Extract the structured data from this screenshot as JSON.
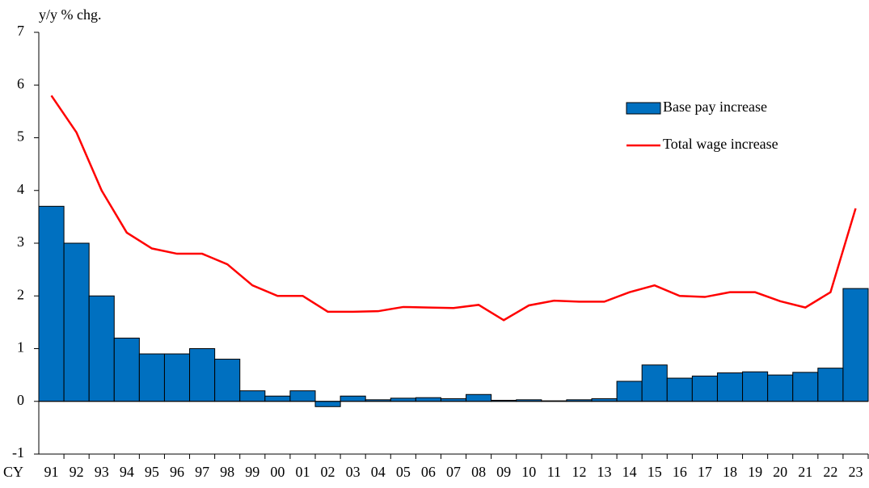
{
  "chart_data": {
    "type": "combo",
    "y_label": "y/y % chg.",
    "x_label": "CY",
    "categories": [
      "91",
      "92",
      "93",
      "94",
      "95",
      "96",
      "97",
      "98",
      "99",
      "00",
      "01",
      "02",
      "03",
      "04",
      "05",
      "06",
      "07",
      "08",
      "09",
      "10",
      "11",
      "12",
      "13",
      "14",
      "15",
      "16",
      "17",
      "18",
      "19",
      "20",
      "21",
      "22",
      "23"
    ],
    "series": [
      {
        "name": "Base pay increase",
        "type": "bar",
        "color": "#0070c0",
        "values": [
          3.7,
          3.0,
          2.0,
          1.2,
          0.9,
          0.9,
          1.0,
          0.8,
          0.2,
          0.1,
          0.2,
          -0.1,
          0.1,
          0.03,
          0.06,
          0.07,
          0.05,
          0.13,
          0.02,
          0.03,
          0.01,
          0.03,
          0.05,
          0.38,
          0.69,
          0.44,
          0.48,
          0.54,
          0.56,
          0.5,
          0.55,
          0.63,
          2.14
        ]
      },
      {
        "name": "Total wage increase",
        "type": "line",
        "color": "#ff0000",
        "values": [
          5.8,
          5.1,
          4.0,
          3.2,
          2.9,
          2.8,
          2.8,
          2.6,
          2.2,
          2.0,
          2.0,
          1.7,
          1.7,
          1.71,
          1.79,
          1.78,
          1.77,
          1.83,
          1.54,
          1.82,
          1.91,
          1.89,
          1.89,
          2.07,
          2.2,
          2.0,
          1.98,
          2.07,
          2.07,
          1.9,
          1.78,
          2.07,
          3.66
        ]
      }
    ],
    "ylim": [
      -1,
      7
    ],
    "yticks": [
      -1,
      0,
      1,
      2,
      3,
      4,
      5,
      6,
      7
    ],
    "legend": "upper right"
  }
}
